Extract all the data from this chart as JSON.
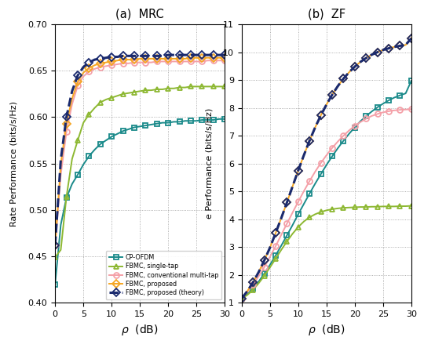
{
  "title_left": "(a)  MRC",
  "title_right": "(b)  ZF",
  "ylabel_left": "Rate Performance (bits/s/Hz)",
  "ylabel_right": "e Performance (bits/s/Hz)",
  "rho": [
    0,
    1,
    2,
    3,
    4,
    5,
    6,
    7,
    8,
    9,
    10,
    11,
    12,
    13,
    14,
    15,
    16,
    17,
    18,
    19,
    20,
    21,
    22,
    23,
    24,
    25,
    26,
    27,
    28,
    29,
    30
  ],
  "mrc_cp_ofdm": [
    0.42,
    0.484,
    0.513,
    0.528,
    0.538,
    0.549,
    0.558,
    0.565,
    0.571,
    0.575,
    0.579,
    0.582,
    0.585,
    0.587,
    0.589,
    0.59,
    0.591,
    0.592,
    0.593,
    0.594,
    0.594,
    0.595,
    0.595,
    0.596,
    0.596,
    0.596,
    0.597,
    0.597,
    0.597,
    0.598,
    0.598
  ],
  "mrc_single_tap": [
    0.449,
    0.457,
    0.514,
    0.555,
    0.575,
    0.594,
    0.603,
    0.61,
    0.616,
    0.619,
    0.621,
    0.623,
    0.625,
    0.626,
    0.627,
    0.628,
    0.629,
    0.629,
    0.63,
    0.63,
    0.631,
    0.631,
    0.632,
    0.632,
    0.633,
    0.633,
    0.633,
    0.633,
    0.633,
    0.633,
    0.633
  ],
  "mrc_conv_multi": [
    0.462,
    0.538,
    0.584,
    0.614,
    0.634,
    0.644,
    0.649,
    0.652,
    0.654,
    0.655,
    0.656,
    0.657,
    0.658,
    0.658,
    0.659,
    0.659,
    0.659,
    0.659,
    0.66,
    0.66,
    0.66,
    0.66,
    0.66,
    0.66,
    0.66,
    0.66,
    0.66,
    0.661,
    0.661,
    0.661,
    0.661
  ],
  "mrc_proposed": [
    0.462,
    0.549,
    0.593,
    0.62,
    0.638,
    0.648,
    0.653,
    0.656,
    0.658,
    0.659,
    0.66,
    0.661,
    0.662,
    0.662,
    0.662,
    0.663,
    0.663,
    0.663,
    0.663,
    0.663,
    0.663,
    0.663,
    0.663,
    0.663,
    0.664,
    0.664,
    0.664,
    0.664,
    0.664,
    0.664,
    0.664
  ],
  "mrc_theory": [
    0.462,
    0.554,
    0.6,
    0.628,
    0.645,
    0.654,
    0.659,
    0.662,
    0.663,
    0.664,
    0.665,
    0.665,
    0.666,
    0.666,
    0.666,
    0.666,
    0.666,
    0.666,
    0.666,
    0.666,
    0.667,
    0.667,
    0.667,
    0.667,
    0.667,
    0.667,
    0.667,
    0.667,
    0.667,
    0.667,
    0.667
  ],
  "zf_cp_ofdm": [
    1.15,
    1.3,
    1.52,
    1.76,
    2.05,
    2.36,
    2.7,
    3.05,
    3.42,
    3.79,
    4.18,
    4.55,
    4.92,
    5.28,
    5.62,
    5.95,
    6.26,
    6.55,
    6.82,
    7.07,
    7.3,
    7.52,
    7.7,
    7.87,
    8.02,
    8.15,
    8.27,
    8.37,
    8.45,
    8.52,
    8.97
  ],
  "zf_single_tap": [
    1.15,
    1.28,
    1.46,
    1.7,
    1.97,
    2.27,
    2.58,
    2.9,
    3.2,
    3.48,
    3.72,
    3.92,
    4.07,
    4.18,
    4.26,
    4.32,
    4.36,
    4.39,
    4.41,
    4.42,
    4.43,
    4.44,
    4.44,
    4.45,
    4.45,
    4.46,
    4.46,
    4.46,
    4.47,
    4.47,
    4.48
  ],
  "zf_conv_multi": [
    1.15,
    1.38,
    1.65,
    1.95,
    2.28,
    2.65,
    3.03,
    3.44,
    3.84,
    4.24,
    4.63,
    5.01,
    5.37,
    5.71,
    6.02,
    6.3,
    6.56,
    6.79,
    7.0,
    7.19,
    7.35,
    7.49,
    7.61,
    7.71,
    7.78,
    7.84,
    7.88,
    7.91,
    7.93,
    7.94,
    7.95
  ],
  "zf_proposed": [
    1.15,
    1.42,
    1.73,
    2.1,
    2.52,
    2.98,
    3.5,
    4.04,
    4.6,
    5.18,
    5.75,
    6.3,
    6.82,
    7.3,
    7.73,
    8.12,
    8.47,
    8.78,
    9.05,
    9.28,
    9.48,
    9.65,
    9.79,
    9.91,
    10.0,
    10.08,
    10.14,
    10.19,
    10.23,
    10.26,
    10.5
  ],
  "zf_theory": [
    1.15,
    1.42,
    1.73,
    2.1,
    2.52,
    2.98,
    3.5,
    4.04,
    4.6,
    5.18,
    5.75,
    6.3,
    6.82,
    7.3,
    7.73,
    8.12,
    8.47,
    8.78,
    9.05,
    9.28,
    9.48,
    9.65,
    9.79,
    9.91,
    10.0,
    10.08,
    10.14,
    10.19,
    10.23,
    10.26,
    10.5
  ],
  "color_cp_ofdm": "#1a8a8a",
  "color_single_tap": "#8db832",
  "color_conv_multi": "#f4a0a8",
  "color_proposed": "#f5a623",
  "color_theory": "#1a2a6e",
  "ylim_left": [
    0.4,
    0.7
  ],
  "ylim_right": [
    1.0,
    11.0
  ],
  "xlim": [
    0,
    30
  ],
  "yticks_left": [
    0.4,
    0.45,
    0.5,
    0.55,
    0.6,
    0.65,
    0.7
  ],
  "yticks_right": [
    1,
    2,
    3,
    4,
    5,
    6,
    7,
    8,
    9,
    10,
    11
  ],
  "xticks": [
    0,
    5,
    10,
    15,
    20,
    25,
    30
  ],
  "legend_labels": [
    "CP-OFDM",
    "FBMC, single-tap",
    "FBMC, conventional multi-tap",
    "FBMC, proposed",
    "FBMC, proposed (theory)"
  ],
  "marker_every": 2,
  "ms": 5,
  "lw": 1.4,
  "theory_lw": 2.2
}
